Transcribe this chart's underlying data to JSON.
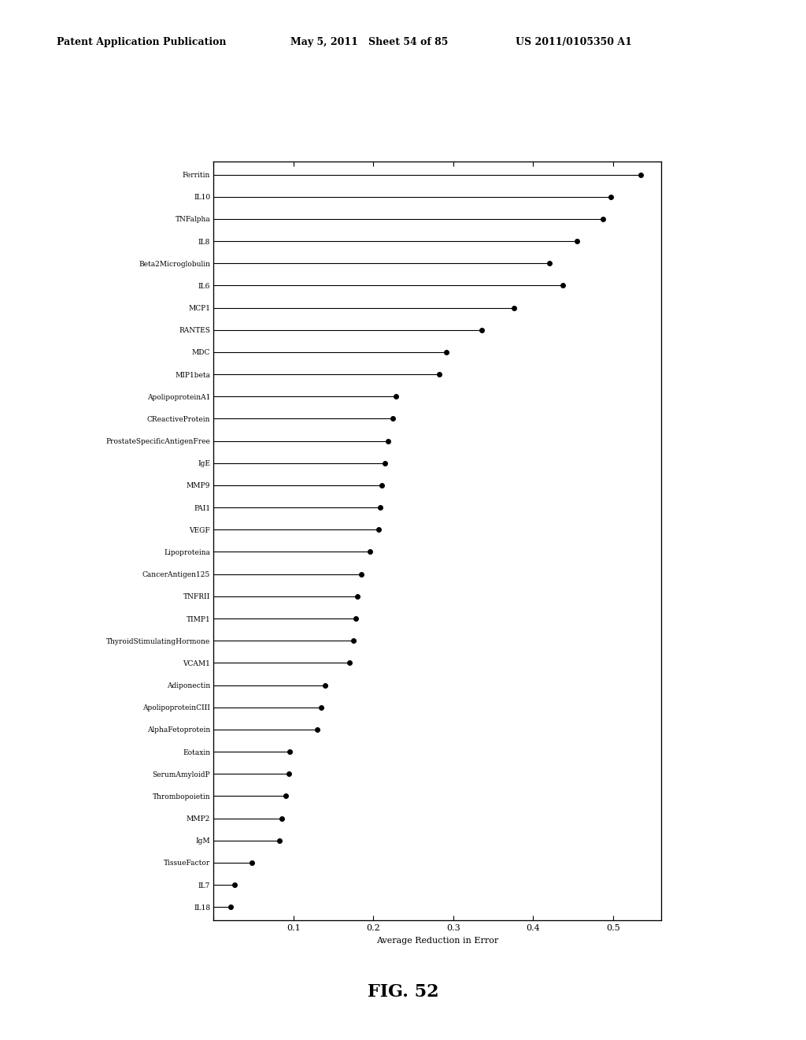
{
  "labels": [
    "Ferritin",
    "IL10",
    "TNFalpha",
    "IL8",
    "Beta2Microglobulin",
    "IL6",
    "MCP1",
    "RANTES",
    "MDC",
    "MIP1beta",
    "ApolipoproteinA1",
    "CReactiveProtein",
    "ProstateSpecificAntigenFree",
    "IgE",
    "MMP9",
    "PAI1",
    "VEGF",
    "Lipoproteina",
    "CancerAntigen125",
    "TNFRII",
    "TIMP1",
    "ThyroidStimulatingHormone",
    "VCAM1",
    "Adiponectin",
    "ApolipoproteinCIII",
    "AlphaFetoprotein",
    "Eotaxin",
    "SerumAmyloidP",
    "Thrombopoietin",
    "MMP2",
    "IgM",
    "TissueFactor",
    "IL7",
    "IL18"
  ],
  "values": [
    0.535,
    0.497,
    0.487,
    0.455,
    0.42,
    0.437,
    0.376,
    0.336,
    0.291,
    0.282,
    0.228,
    0.224,
    0.218,
    0.214,
    0.211,
    0.209,
    0.207,
    0.196,
    0.185,
    0.18,
    0.178,
    0.175,
    0.17,
    0.14,
    0.135,
    0.13,
    0.095,
    0.094,
    0.09,
    0.085,
    0.082,
    0.048,
    0.026,
    0.021
  ],
  "xlabel": "Average Reduction in Error",
  "xlim": [
    0,
    0.56
  ],
  "xticks": [
    0.0,
    0.1,
    0.2,
    0.3,
    0.4,
    0.5
  ],
  "xtick_labels": [
    "",
    "0.1",
    "0.2",
    "0.3",
    "0.4",
    "0.5"
  ],
  "figure_title": "FIG. 52",
  "header_left": "Patent Application Publication",
  "header_mid": "May 5, 2011   Sheet 54 of 85",
  "header_right": "US 2011/0105350 A1",
  "background_color": "#ffffff",
  "line_color": "#000000",
  "dot_color": "#000000",
  "dot_size": 4.0,
  "label_fontsize": 6.5,
  "axis_fontsize": 8.0,
  "title_fontsize": 16,
  "header_fontsize": 9
}
